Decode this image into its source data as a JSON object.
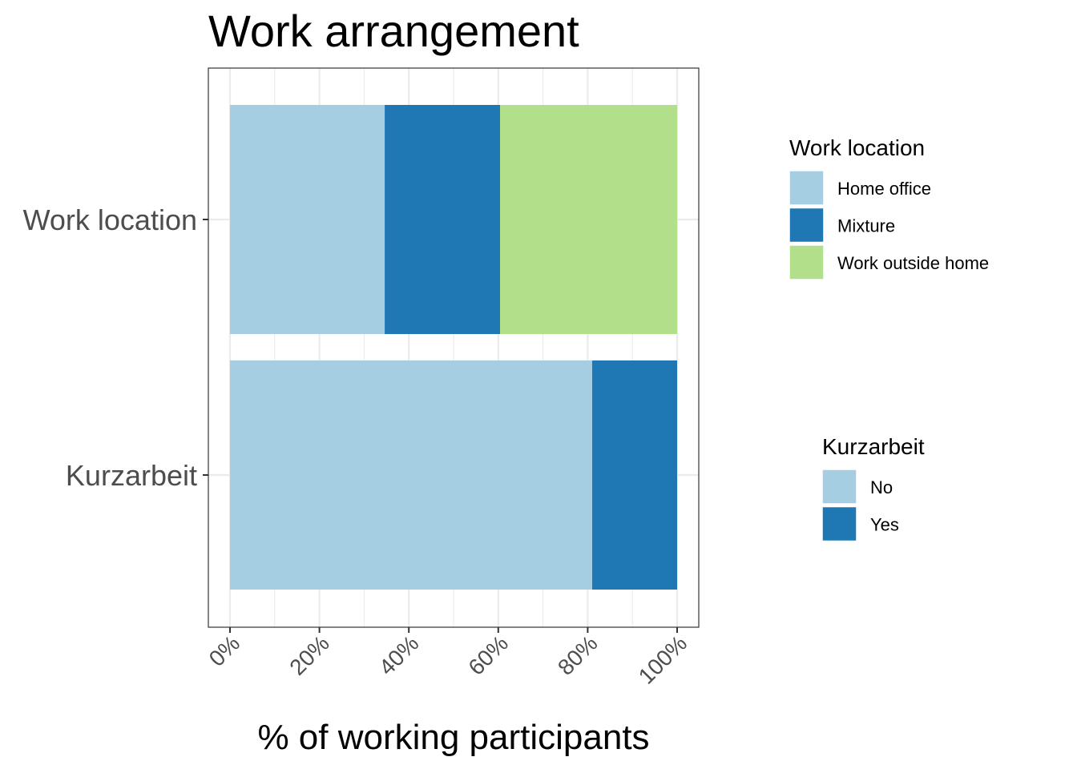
{
  "chart_data": {
    "type": "bar",
    "orientation": "horizontal",
    "stacked": true,
    "title": "Work arrangement",
    "xlabel": "% of working participants",
    "ylabel": "",
    "xlim": [
      0,
      100
    ],
    "x_ticks": [
      "0%",
      "20%",
      "40%",
      "60%",
      "80%",
      "100%"
    ],
    "grid": true,
    "categories": [
      "Work location",
      "Kurzarbeit"
    ],
    "bars": [
      {
        "category": "Work location",
        "segments": [
          {
            "label": "Home office",
            "value": 34.6,
            "color": "#a6cee3"
          },
          {
            "label": "Mixture",
            "value": 25.8,
            "color": "#1f78b4"
          },
          {
            "label": "Work outside home",
            "value": 39.6,
            "color": "#b2df8a"
          }
        ]
      },
      {
        "category": "Kurzarbeit",
        "segments": [
          {
            "label": "No",
            "value": 81.0,
            "color": "#a6cee3"
          },
          {
            "label": "Yes",
            "value": 19.0,
            "color": "#1f78b4"
          }
        ]
      }
    ],
    "legends": [
      {
        "title": "Work location",
        "placement": "right-top",
        "entries": [
          {
            "label": "Home office",
            "color": "#a6cee3"
          },
          {
            "label": "Mixture",
            "color": "#1f78b4"
          },
          {
            "label": "Work outside home",
            "color": "#b2df8a"
          }
        ]
      },
      {
        "title": "Kurzarbeit",
        "placement": "right-bottom",
        "entries": [
          {
            "label": "No",
            "color": "#a6cee3"
          },
          {
            "label": "Yes",
            "color": "#1f78b4"
          }
        ]
      }
    ]
  }
}
